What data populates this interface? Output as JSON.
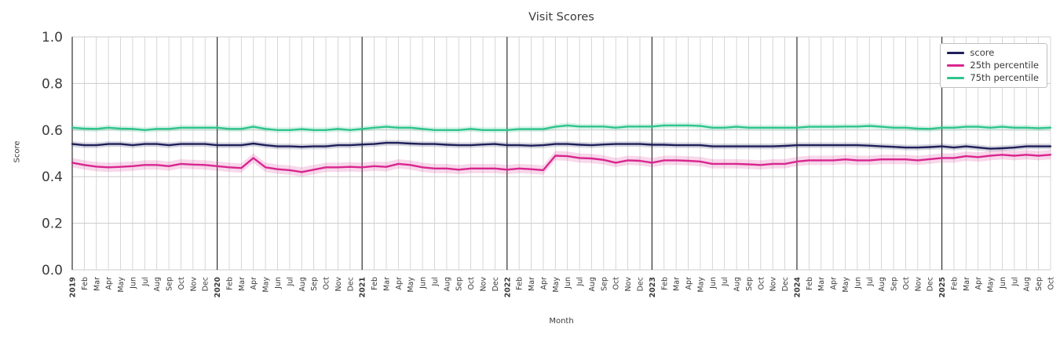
{
  "chart_data": {
    "type": "line",
    "title": "Visit Scores",
    "xlabel": "Month",
    "ylabel": "Score",
    "ylim": [
      0.0,
      1.0
    ],
    "yticks": [
      0.0,
      0.2,
      0.4,
      0.6,
      0.8,
      1.0
    ],
    "grid": true,
    "grid_color": "#cccccc",
    "year_grid_color": "#2f2f2f",
    "tick_label_color": "#3b3b3b",
    "legend_position": "upper right",
    "x": [
      "2019",
      "Feb",
      "Mar",
      "Apr",
      "May",
      "Jun",
      "Jul",
      "Aug",
      "Sep",
      "Oct",
      "Nov",
      "Dec",
      "2020",
      "Feb",
      "Mar",
      "Apr",
      "May",
      "Jun",
      "Jul",
      "Aug",
      "Sep",
      "Oct",
      "Nov",
      "Dec",
      "2021",
      "Feb",
      "Mar",
      "Apr",
      "May",
      "Jun",
      "Jul",
      "Aug",
      "Sep",
      "Oct",
      "Nov",
      "Dec",
      "2022",
      "Feb",
      "Mar",
      "Apr",
      "May",
      "Jun",
      "Jul",
      "Aug",
      "Sep",
      "Oct",
      "Nov",
      "Dec",
      "2023",
      "Feb",
      "Mar",
      "Apr",
      "May",
      "Jun",
      "Jul",
      "Aug",
      "Sep",
      "Oct",
      "Nov",
      "Dec",
      "2024",
      "Feb",
      "Mar",
      "Apr",
      "May",
      "Jun",
      "Jul",
      "Aug",
      "Sep",
      "Oct",
      "Nov",
      "Dec",
      "2025",
      "Feb",
      "Mar",
      "Apr",
      "May",
      "Jun",
      "Jul",
      "Aug",
      "Sep",
      "Oct"
    ],
    "series": [
      {
        "name": "score",
        "color": "#1f1f5a",
        "band": 0.012,
        "values": [
          0.54,
          0.535,
          0.535,
          0.54,
          0.54,
          0.535,
          0.54,
          0.54,
          0.535,
          0.54,
          0.54,
          0.54,
          0.535,
          0.535,
          0.535,
          0.542,
          0.535,
          0.53,
          0.53,
          0.528,
          0.53,
          0.53,
          0.535,
          0.535,
          0.538,
          0.54,
          0.545,
          0.545,
          0.542,
          0.54,
          0.54,
          0.537,
          0.535,
          0.535,
          0.538,
          0.54,
          0.535,
          0.535,
          0.533,
          0.535,
          0.54,
          0.54,
          0.537,
          0.535,
          0.538,
          0.54,
          0.54,
          0.54,
          0.537,
          0.537,
          0.535,
          0.535,
          0.535,
          0.53,
          0.53,
          0.53,
          0.53,
          0.53,
          0.53,
          0.532,
          0.535,
          0.535,
          0.535,
          0.535,
          0.535,
          0.535,
          0.533,
          0.53,
          0.528,
          0.525,
          0.525,
          0.527,
          0.53,
          0.525,
          0.53,
          0.525,
          0.52,
          0.522,
          0.525,
          0.53,
          0.53,
          0.53
        ]
      },
      {
        "name": "25th percentile",
        "color": "#d9268f",
        "band": 0.02,
        "values": [
          0.46,
          0.45,
          0.443,
          0.44,
          0.442,
          0.445,
          0.45,
          0.45,
          0.445,
          0.455,
          0.452,
          0.45,
          0.445,
          0.44,
          0.437,
          0.48,
          0.44,
          0.432,
          0.428,
          0.42,
          0.43,
          0.44,
          0.44,
          0.442,
          0.44,
          0.445,
          0.442,
          0.455,
          0.45,
          0.44,
          0.435,
          0.435,
          0.43,
          0.435,
          0.435,
          0.435,
          0.43,
          0.435,
          0.432,
          0.428,
          0.49,
          0.488,
          0.48,
          0.478,
          0.472,
          0.46,
          0.47,
          0.468,
          0.46,
          0.47,
          0.47,
          0.468,
          0.465,
          0.455,
          0.455,
          0.455,
          0.453,
          0.45,
          0.455,
          0.455,
          0.465,
          0.47,
          0.47,
          0.47,
          0.474,
          0.47,
          0.47,
          0.474,
          0.474,
          0.474,
          0.47,
          0.475,
          0.48,
          0.48,
          0.488,
          0.484,
          0.49,
          0.494,
          0.49,
          0.494,
          0.49,
          0.494
        ]
      },
      {
        "name": "75th percentile",
        "color": "#2ec48b",
        "band": 0.012,
        "values": [
          0.61,
          0.606,
          0.605,
          0.61,
          0.606,
          0.605,
          0.6,
          0.605,
          0.605,
          0.61,
          0.61,
          0.61,
          0.61,
          0.605,
          0.605,
          0.614,
          0.605,
          0.6,
          0.6,
          0.604,
          0.6,
          0.6,
          0.605,
          0.6,
          0.605,
          0.61,
          0.614,
          0.61,
          0.61,
          0.605,
          0.6,
          0.6,
          0.6,
          0.605,
          0.6,
          0.6,
          0.6,
          0.604,
          0.604,
          0.604,
          0.614,
          0.62,
          0.615,
          0.615,
          0.615,
          0.61,
          0.615,
          0.615,
          0.615,
          0.62,
          0.62,
          0.62,
          0.618,
          0.61,
          0.61,
          0.614,
          0.61,
          0.61,
          0.61,
          0.61,
          0.61,
          0.614,
          0.614,
          0.614,
          0.615,
          0.615,
          0.618,
          0.614,
          0.61,
          0.61,
          0.606,
          0.605,
          0.61,
          0.61,
          0.614,
          0.614,
          0.61,
          0.614,
          0.61,
          0.61,
          0.608,
          0.61
        ]
      }
    ]
  }
}
